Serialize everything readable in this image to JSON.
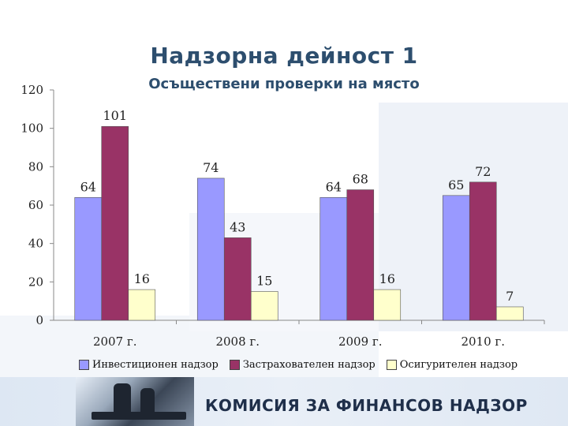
{
  "slide": {
    "title": "Надзорна дейност 1",
    "subtitle": "Осъществени проверки на място",
    "organization": "КОМИСИЯ ЗА ФИНАНСОВ НАДЗОР"
  },
  "legend": {
    "items": [
      "Инвестиционен надзор",
      "Застрахователен надзор",
      "Осигурителен надзор"
    ]
  },
  "colors": {
    "investment": "#9999ff",
    "insurance": "#993366",
    "pension": "#ffffcc",
    "accent": "#2d4e6e"
  },
  "chart_data": {
    "type": "bar",
    "categories": [
      "2007 г.",
      "2008 г.",
      "2009 г.",
      "2010 г."
    ],
    "series": [
      {
        "name": "Инвестиционен надзор",
        "values": [
          64,
          74,
          64,
          65
        ]
      },
      {
        "name": "Застрахователен надзор",
        "values": [
          101,
          43,
          68,
          72
        ]
      },
      {
        "name": "Осигурителен надзор",
        "values": [
          16,
          15,
          16,
          7
        ]
      }
    ],
    "ylim": [
      0,
      120
    ],
    "yticks": [
      "0",
      "20",
      "40",
      "60",
      "80",
      "100",
      "120"
    ],
    "grid": false,
    "legend_position": "bottom"
  }
}
